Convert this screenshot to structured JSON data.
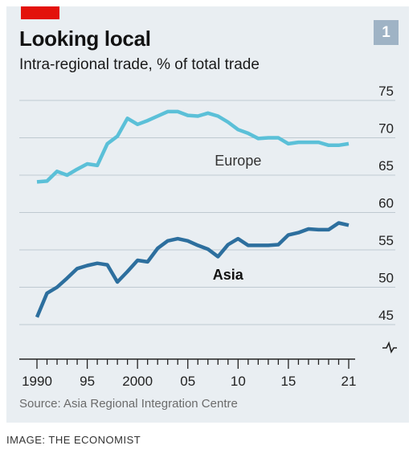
{
  "header": {
    "title": "Looking local",
    "subtitle": "Intra-regional trade, % of total trade",
    "chart_number": "1"
  },
  "footer": {
    "source": "Source: Asia Regional Integration Centre",
    "credit": "IMAGE: THE ECONOMIST"
  },
  "colors": {
    "brand_red": "#e3120b",
    "europe": "#5bc0d8",
    "asia": "#2d6f9e",
    "background": "#e9eef2",
    "gridline": "#bfc9d1"
  },
  "chart_data": {
    "type": "line",
    "title": "Looking local",
    "subtitle": "Intra-regional trade, % of total trade",
    "xlim": [
      1990,
      2021
    ],
    "ylim": [
      43,
      75
    ],
    "y_axis_broken": true,
    "y_axis_side": "right",
    "grid": "horizontal",
    "yticks": [
      45,
      50,
      55,
      60,
      65,
      70,
      75
    ],
    "ytick_labels": [
      "45",
      "50",
      "55",
      "60",
      "65",
      "70",
      "75"
    ],
    "xticks": [
      1990,
      1995,
      2000,
      2005,
      2010,
      2015,
      2021
    ],
    "xtick_labels": [
      "1990",
      "95",
      "2000",
      "05",
      "10",
      "15",
      "21"
    ],
    "x": [
      1990,
      1991,
      1992,
      1993,
      1994,
      1995,
      1996,
      1997,
      1998,
      1999,
      2000,
      2001,
      2002,
      2003,
      2004,
      2005,
      2006,
      2007,
      2008,
      2009,
      2010,
      2011,
      2012,
      2013,
      2014,
      2015,
      2016,
      2017,
      2018,
      2019,
      2020,
      2021
    ],
    "series": [
      {
        "name": "Europe",
        "color": "#5bc0d8",
        "values": [
          64.1,
          64.2,
          65.5,
          65.0,
          65.8,
          66.5,
          66.3,
          69.2,
          70.2,
          72.6,
          71.8,
          72.3,
          72.9,
          73.5,
          73.5,
          73.0,
          72.9,
          73.3,
          72.9,
          72.1,
          71.1,
          70.6,
          69.9,
          70.0,
          70.0,
          69.2,
          69.4,
          69.4,
          69.4,
          69.0,
          69.0,
          69.2
        ],
        "label_at": [
          2010,
          66.3
        ]
      },
      {
        "name": "Asia",
        "color": "#2d6f9e",
        "values": [
          46.0,
          49.2,
          50.0,
          51.2,
          52.5,
          52.9,
          53.2,
          53.0,
          50.7,
          52.1,
          53.6,
          53.4,
          55.2,
          56.2,
          56.5,
          56.2,
          55.6,
          55.1,
          54.1,
          55.7,
          56.5,
          55.6,
          55.6,
          55.6,
          55.7,
          57.0,
          57.3,
          57.8,
          57.7,
          57.7,
          58.6,
          58.3
        ],
        "label_at": [
          2009,
          51.0
        ]
      }
    ]
  }
}
